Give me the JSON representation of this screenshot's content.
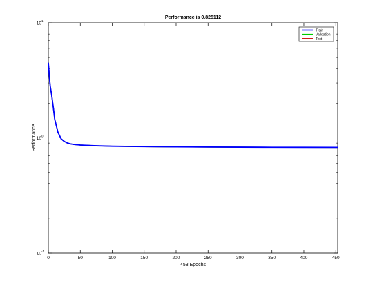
{
  "chart_data": {
    "type": "line",
    "title": "Performance is 0.825112",
    "xlabel": "453 Epochs",
    "ylabel": "Performance",
    "xlim": [
      0,
      453
    ],
    "ylim": [
      0.1,
      10
    ],
    "yscale": "log",
    "grid": false,
    "legend_position": "top-right",
    "x_ticks": [
      "0",
      "50",
      "100",
      "150",
      "200",
      "250",
      "300",
      "350",
      "400",
      "450"
    ],
    "y_ticks": [
      {
        "base": "10",
        "exp": "-1"
      },
      {
        "base": "10",
        "exp": "0"
      },
      {
        "base": "10",
        "exp": "1"
      }
    ],
    "series": [
      {
        "name": "Train",
        "color": "#0000ff",
        "x": [
          0,
          1,
          2,
          3,
          5,
          8,
          10,
          15,
          20,
          25,
          30,
          35,
          40,
          50,
          75,
          100,
          150,
          200,
          250,
          300,
          350,
          400,
          453
        ],
        "y": [
          4.5,
          3.8,
          3.2,
          2.8,
          2.4,
          1.8,
          1.45,
          1.12,
          0.98,
          0.93,
          0.9,
          0.885,
          0.875,
          0.865,
          0.852,
          0.845,
          0.838,
          0.834,
          0.831,
          0.829,
          0.827,
          0.826,
          0.825
        ]
      },
      {
        "name": "Validation",
        "color": "#00cc00",
        "x": [
          0,
          1,
          2,
          3,
          5,
          8,
          10,
          15,
          20,
          25,
          30,
          35,
          40,
          50,
          75,
          100,
          150,
          200,
          250,
          300,
          350,
          400,
          453
        ],
        "y": [
          4.5,
          3.8,
          3.2,
          2.8,
          2.4,
          1.8,
          1.45,
          1.12,
          0.98,
          0.93,
          0.9,
          0.885,
          0.875,
          0.865,
          0.852,
          0.845,
          0.838,
          0.834,
          0.831,
          0.829,
          0.827,
          0.826,
          0.825
        ]
      },
      {
        "name": "Test",
        "color": "#cc0000",
        "x": [
          0,
          1,
          2,
          3,
          5,
          8,
          10,
          15,
          20,
          25,
          30,
          35,
          40,
          50,
          75,
          100,
          150,
          200,
          250,
          300,
          350,
          400,
          453
        ],
        "y": [
          4.5,
          3.8,
          3.2,
          2.8,
          2.4,
          1.8,
          1.45,
          1.12,
          0.98,
          0.93,
          0.9,
          0.885,
          0.875,
          0.865,
          0.852,
          0.845,
          0.838,
          0.834,
          0.831,
          0.829,
          0.827,
          0.826,
          0.825
        ]
      }
    ]
  }
}
